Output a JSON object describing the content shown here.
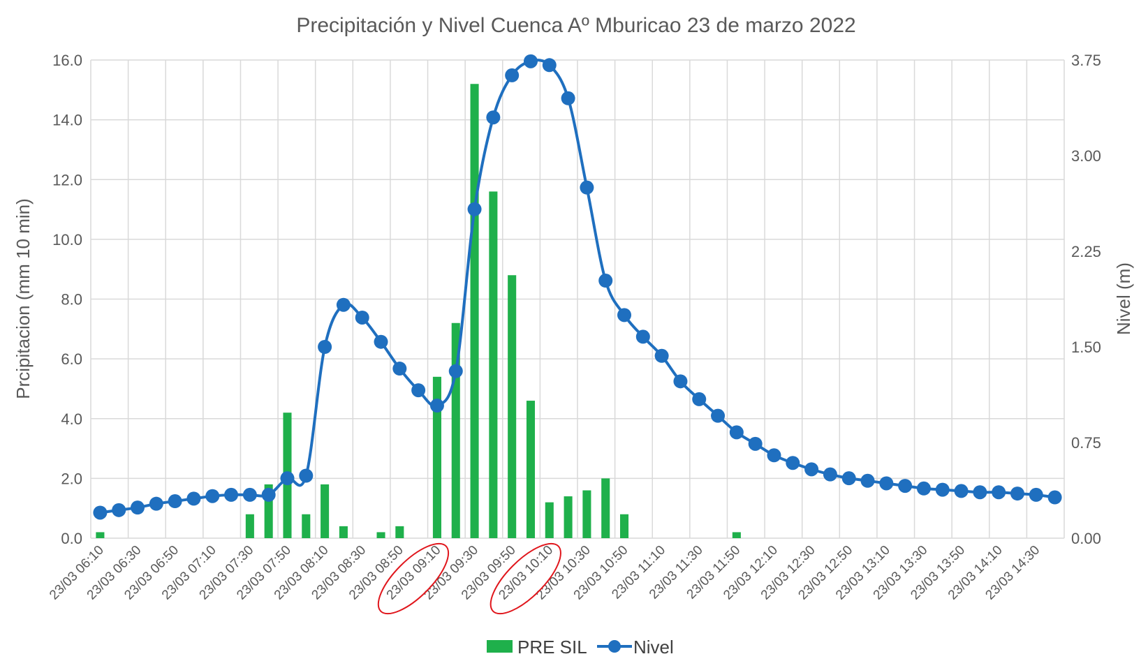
{
  "chart_data": {
    "type": "bar+line",
    "title": "Precipitación y Nivel Cuenca Aº Mburicao 23 de marzo 2022",
    "y_left_label": "Prcipitacion (mm 10 min)",
    "y_right_label": "Nivel (m)",
    "y_left_lim": [
      0,
      16
    ],
    "y_left_ticks": [
      "0.0",
      "2.0",
      "4.0",
      "6.0",
      "8.0",
      "10.0",
      "12.0",
      "14.0",
      "16.0"
    ],
    "y_right_lim": [
      0,
      3.75
    ],
    "y_right_ticks": [
      "0.00",
      "0.75",
      "1.50",
      "2.25",
      "3.00",
      "3.75"
    ],
    "grid": true,
    "legend_position": "bottom",
    "x": [
      "06:10",
      "06:20",
      "06:30",
      "06:40",
      "06:50",
      "07:00",
      "07:10",
      "07:20",
      "07:30",
      "07:40",
      "07:50",
      "08:00",
      "08:10",
      "08:20",
      "08:30",
      "08:40",
      "08:50",
      "09:00",
      "09:10",
      "09:20",
      "09:30",
      "09:40",
      "09:50",
      "10:00",
      "10:10",
      "10:20",
      "10:30",
      "10:40",
      "10:50",
      "11:00",
      "11:10",
      "11:20",
      "11:30",
      "11:40",
      "11:50",
      "12:00",
      "12:10",
      "12:20",
      "12:30",
      "12:40",
      "12:50",
      "13:00",
      "13:10",
      "13:20",
      "13:30",
      "13:40",
      "13:50",
      "14:00",
      "14:10",
      "14:20",
      "14:30",
      "14:40"
    ],
    "x_tick_labels": [
      "23/03 06:10",
      "23/03 06:30",
      "23/03 06:50",
      "23/03 07:10",
      "23/03 07:30",
      "23/03 07:50",
      "23/03 08:10",
      "23/03 08:30",
      "23/03 08:50",
      "23/03 09:10",
      "23/03 09:30",
      "23/03 09:50",
      "23/03 10:10",
      "23/03 10:30",
      "23/03 10:50",
      "23/03 11:10",
      "23/03 11:30",
      "23/03 11:50",
      "23/03 12:10",
      "23/03 12:30",
      "23/03 12:50",
      "23/03 13:10",
      "23/03 13:30",
      "23/03 13:50",
      "23/03 14:10",
      "23/03 14:30"
    ],
    "series": [
      {
        "name": "PRE SIL",
        "type": "bar",
        "axis": "left",
        "color": "#1fb04b",
        "values": [
          0.2,
          0,
          0,
          0,
          0,
          0,
          0,
          0,
          0.8,
          1.8,
          4.2,
          0.8,
          1.8,
          0.4,
          0,
          0.2,
          0.4,
          0,
          5.4,
          7.2,
          15.2,
          11.6,
          8.8,
          4.6,
          1.2,
          1.4,
          1.6,
          2.0,
          0.8,
          0,
          0,
          0,
          0,
          0,
          0.2,
          0,
          0,
          0,
          0,
          0,
          0,
          0,
          0,
          0,
          0,
          0,
          0,
          0,
          0,
          0,
          0,
          0
        ]
      },
      {
        "name": "Nivel",
        "type": "line",
        "axis": "right",
        "color": "#1f6fbf",
        "values": [
          0.2,
          0.22,
          0.24,
          0.27,
          0.29,
          0.31,
          0.33,
          0.34,
          0.34,
          0.34,
          0.47,
          0.49,
          1.5,
          1.83,
          1.73,
          1.54,
          1.33,
          1.16,
          1.04,
          1.31,
          2.58,
          3.3,
          3.63,
          3.74,
          3.71,
          3.45,
          2.75,
          2.02,
          1.75,
          1.58,
          1.43,
          1.23,
          1.09,
          0.96,
          0.83,
          0.74,
          0.65,
          0.59,
          0.54,
          0.5,
          0.47,
          0.45,
          0.43,
          0.41,
          0.39,
          0.38,
          0.37,
          0.36,
          0.36,
          0.35,
          0.34,
          0.32
        ]
      }
    ],
    "annotations": [
      {
        "type": "ellipse",
        "target_label": "23/03 09:10",
        "color": "#e0161c"
      },
      {
        "type": "ellipse",
        "target_label": "23/03 10:10",
        "color": "#e0161c"
      }
    ]
  }
}
